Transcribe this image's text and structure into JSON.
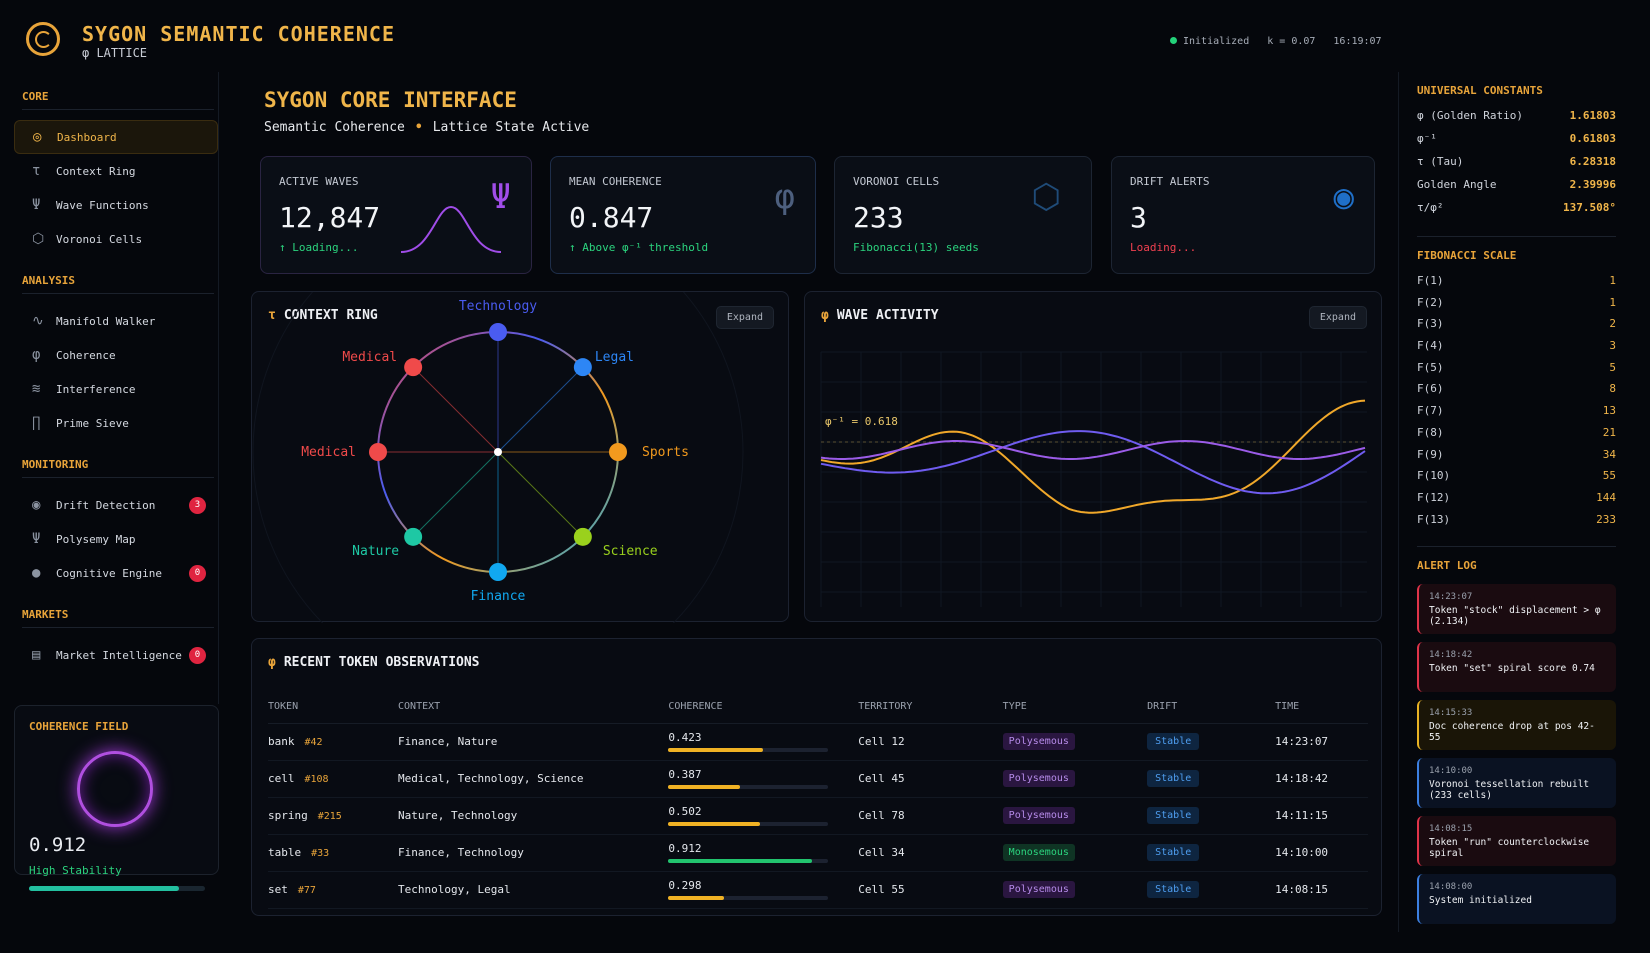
{
  "header": {
    "title": "SYGON SEMANTIC COHERENCE",
    "subtitle": "φ LATTICE",
    "status": "Initialized",
    "k": "k = 0.07",
    "time": "16:19:07"
  },
  "sidebar": {
    "sections": [
      {
        "label": "CORE",
        "items": [
          {
            "label": "Dashboard",
            "icon": "target-icon",
            "glyph": "◎",
            "active": true
          },
          {
            "label": "Context Ring",
            "icon": "tau-icon",
            "glyph": "τ"
          },
          {
            "label": "Wave Functions",
            "icon": "psi-icon",
            "glyph": "Ψ"
          },
          {
            "label": "Voronoi Cells",
            "icon": "hexagon-icon",
            "glyph": "⬡"
          }
        ]
      },
      {
        "label": "ANALYSIS",
        "items": [
          {
            "label": "Manifold Walker",
            "icon": "wave-icon",
            "glyph": "∿"
          },
          {
            "label": "Coherence",
            "icon": "phi-icon",
            "glyph": "φ"
          },
          {
            "label": "Interference",
            "icon": "lines-icon",
            "glyph": "≋"
          },
          {
            "label": "Prime Sieve",
            "icon": "pi-icon",
            "glyph": "∏"
          }
        ]
      },
      {
        "label": "MONITORING",
        "items": [
          {
            "label": "Drift Detection",
            "icon": "spiral-icon",
            "glyph": "◉",
            "badge": "3"
          },
          {
            "label": "Polysemy Map",
            "icon": "fork-icon",
            "glyph": "Ψ"
          },
          {
            "label": "Cognitive Engine",
            "icon": "brain-icon",
            "glyph": "●",
            "badge": "0"
          }
        ]
      },
      {
        "label": "MARKETS",
        "items": [
          {
            "label": "Market Intelligence",
            "icon": "chart-icon",
            "glyph": "▤",
            "badge": "0"
          }
        ]
      }
    ]
  },
  "coherence_field": {
    "title": "COHERENCE FIELD",
    "value": "0.912",
    "status": "High Stability",
    "level": 0.85
  },
  "main": {
    "title": "SYGON CORE INTERFACE",
    "subtitle_a": "Semantic Coherence",
    "subtitle_sep": "•",
    "subtitle_b": "Lattice State Active"
  },
  "cards": [
    {
      "label": "ACTIVE WAVES",
      "value": "12,847",
      "sub": "↑ Loading...",
      "icon": "Ψ"
    },
    {
      "label": "MEAN COHERENCE",
      "value": "0.847",
      "sub": "↑ Above φ⁻¹ threshold",
      "icon": "φ"
    },
    {
      "label": "VORONOI CELLS",
      "value": "233",
      "sub": "Fibonacci(13) seeds",
      "icon": "⬡"
    },
    {
      "label": "DRIFT ALERTS",
      "value": "3",
      "sub": "Loading...",
      "icon": "◉"
    }
  ],
  "context_ring": {
    "title": "CONTEXT RING",
    "expand": "Expand",
    "nodes": [
      {
        "label": "Technology",
        "color": "#4a5cf0"
      },
      {
        "label": "Legal",
        "color": "#2d86f5"
      },
      {
        "label": "Sports",
        "color": "#f29a1e"
      },
      {
        "label": "Science",
        "color": "#9ad11d"
      },
      {
        "label": "Finance",
        "color": "#11a8f0"
      },
      {
        "label": "Nature",
        "color": "#1ec8a4"
      },
      {
        "label": "Medical",
        "color": "#f04a4a"
      },
      {
        "label": "Medical",
        "color": "#f04a4a"
      }
    ]
  },
  "wave_activity": {
    "title": "WAVE ACTIVITY",
    "expand": "Expand",
    "label": "φ⁻¹ = 0.618"
  },
  "observations": {
    "title": "RECENT TOKEN OBSERVATIONS",
    "columns": [
      "TOKEN",
      "CONTEXT",
      "COHERENCE",
      "TERRITORY",
      "TYPE",
      "DRIFT",
      "TIME"
    ],
    "rows": [
      {
        "token": "bank",
        "id": "#42",
        "context": "Finance, Nature",
        "coherence": "0.423",
        "level": 0.59,
        "bar": "#f0b224",
        "territory": "Cell 12",
        "type": "Polysemous",
        "drift": "Stable",
        "time": "14:23:07"
      },
      {
        "token": "cell",
        "id": "#108",
        "context": "Medical, Technology, Science",
        "coherence": "0.387",
        "level": 0.45,
        "bar": "#f0b224",
        "territory": "Cell 45",
        "type": "Polysemous",
        "drift": "Stable",
        "time": "14:18:42"
      },
      {
        "token": "spring",
        "id": "#215",
        "context": "Nature, Technology",
        "coherence": "0.502",
        "level": 0.57,
        "bar": "#f0b224",
        "territory": "Cell 78",
        "type": "Polysemous",
        "drift": "Stable",
        "time": "14:11:15"
      },
      {
        "token": "table",
        "id": "#33",
        "context": "Finance, Technology",
        "coherence": "0.912",
        "level": 0.9,
        "bar": "#22c46e",
        "territory": "Cell 34",
        "type": "Monosemous",
        "drift": "Stable",
        "time": "14:10:00"
      },
      {
        "token": "set",
        "id": "#77",
        "context": "Technology, Legal",
        "coherence": "0.298",
        "level": 0.35,
        "bar": "#f0b224",
        "territory": "Cell 55",
        "type": "Polysemous",
        "drift": "Stable",
        "time": "14:08:15"
      }
    ]
  },
  "constants": {
    "title": "UNIVERSAL CONSTANTS",
    "items": [
      {
        "k": "φ (Golden Ratio)",
        "v": "1.61803"
      },
      {
        "k": "φ⁻¹",
        "v": "0.61803"
      },
      {
        "k": "τ (Tau)",
        "v": "6.28318"
      },
      {
        "k": "Golden Angle",
        "v": "2.39996"
      },
      {
        "k": "τ/φ²",
        "v": "137.508°"
      }
    ]
  },
  "fibonacci": {
    "title": "FIBONACCI SCALE",
    "items": [
      {
        "k": "F(1)",
        "v": "1"
      },
      {
        "k": "F(2)",
        "v": "1"
      },
      {
        "k": "F(3)",
        "v": "2"
      },
      {
        "k": "F(4)",
        "v": "3"
      },
      {
        "k": "F(5)",
        "v": "5"
      },
      {
        "k": "F(6)",
        "v": "8"
      },
      {
        "k": "F(7)",
        "v": "13"
      },
      {
        "k": "F(8)",
        "v": "21"
      },
      {
        "k": "F(9)",
        "v": "34"
      },
      {
        "k": "F(10)",
        "v": "55"
      },
      {
        "k": "F(12)",
        "v": "144"
      },
      {
        "k": "F(13)",
        "v": "233"
      }
    ]
  },
  "alerts": {
    "title": "ALERT LOG",
    "items": [
      {
        "time": "14:23:07",
        "text": "Token \"stock\" displacement > φ (2.134)",
        "kind": "red"
      },
      {
        "time": "14:18:42",
        "text": "Token \"set\" spiral score 0.74",
        "kind": "red"
      },
      {
        "time": "14:15:33",
        "text": "Doc coherence drop at pos 42-55",
        "kind": "yel"
      },
      {
        "time": "14:10:00",
        "text": "Voronoi tessellation rebuilt (233 cells)",
        "kind": "blu"
      },
      {
        "time": "14:08:15",
        "text": "Token \"run\" counterclockwise spiral",
        "kind": "red"
      },
      {
        "time": "14:08:00",
        "text": "System initialized",
        "kind": "blu"
      }
    ]
  }
}
